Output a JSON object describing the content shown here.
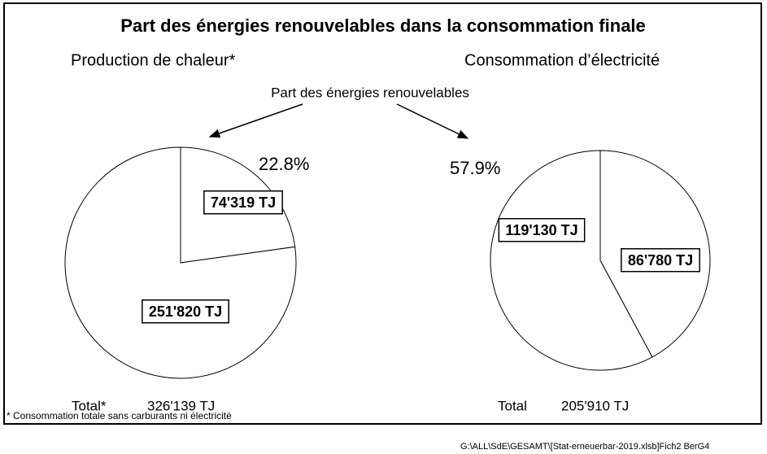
{
  "title": "Part des énergies renouvelables dans la consommation finale",
  "annotation": "Part des énergies renouvelables",
  "footnote": "* Consommation totale sans carburants ni électricité",
  "file_path": "G:\\ALL\\SdE\\GESAMT\\[Stat-erneuerbar-2019.xlsb]Fich2   BerG4",
  "chart_data": [
    {
      "type": "pie",
      "title": "Production de chaleur*",
      "values": [
        74319,
        251820
      ],
      "value_labels": [
        "74'319 TJ",
        "251'820 TJ"
      ],
      "colors": [
        "#ffffff",
        "#ffffff"
      ],
      "share": {
        "value": 22.8,
        "label": "22.8%"
      },
      "total_label": "Total*",
      "total": {
        "value": 326139,
        "label": "326'139 TJ"
      }
    },
    {
      "type": "pie",
      "title": "Consommation d’électricité",
      "values": [
        86780,
        119130
      ],
      "value_labels": [
        "86'780 TJ",
        "119'130 TJ"
      ],
      "colors": [
        "#ffffff",
        "#ffffff"
      ],
      "share": {
        "value": 57.9,
        "label": "57.9%"
      },
      "total_label": "Total",
      "total": {
        "value": 205910,
        "label": "205'910 TJ"
      }
    }
  ]
}
